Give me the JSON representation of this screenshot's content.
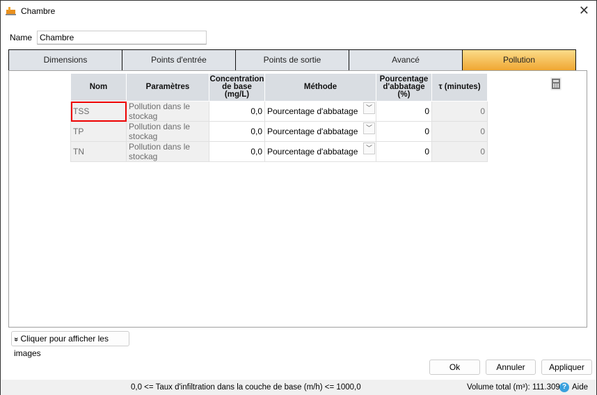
{
  "window": {
    "title": "Chambre",
    "close": "✕"
  },
  "name": {
    "label": "Name",
    "value": "Chambre"
  },
  "tabs": [
    {
      "label": "Dimensions"
    },
    {
      "label": "Points d'entrée"
    },
    {
      "label": "Points de sortie"
    },
    {
      "label": "Avancé"
    },
    {
      "label": "Pollution",
      "active": true
    }
  ],
  "table": {
    "headers": [
      "Nom",
      "Paramètres",
      "Concentration de base (mg/L)",
      "Méthode",
      "Pourcentage d'abbatage (%)",
      "τ (minutes)"
    ],
    "rows": [
      {
        "nom": "TSS",
        "param": "Pollution dans le stockag",
        "conc": "0,0",
        "methode": "Pourcentage d'abbatage",
        "pct": "0",
        "tau": "0"
      },
      {
        "nom": "TP",
        "param": "Pollution dans le stockag",
        "conc": "0,0",
        "methode": "Pourcentage d'abbatage",
        "pct": "0",
        "tau": "0"
      },
      {
        "nom": "TN",
        "param": "Pollution dans le stockag",
        "conc": "0,0",
        "methode": "Pourcentage d'abbatage",
        "pct": "0",
        "tau": "0"
      }
    ]
  },
  "show_images": {
    "icon": "»",
    "label": "Cliquer pour afficher les images"
  },
  "buttons": {
    "ok": "Ok",
    "cancel": "Annuler",
    "apply": "Appliquer"
  },
  "status": {
    "infiltration": "0,0 <= Taux d'infiltration dans la couche de base (m/h) <= 1000,0",
    "volume_label": "Volume total  (m³):",
    "volume_value": "111.309",
    "help": "Aide"
  },
  "colors": {
    "active_tab": "#f0a732",
    "selected_cell": "#e00000"
  }
}
